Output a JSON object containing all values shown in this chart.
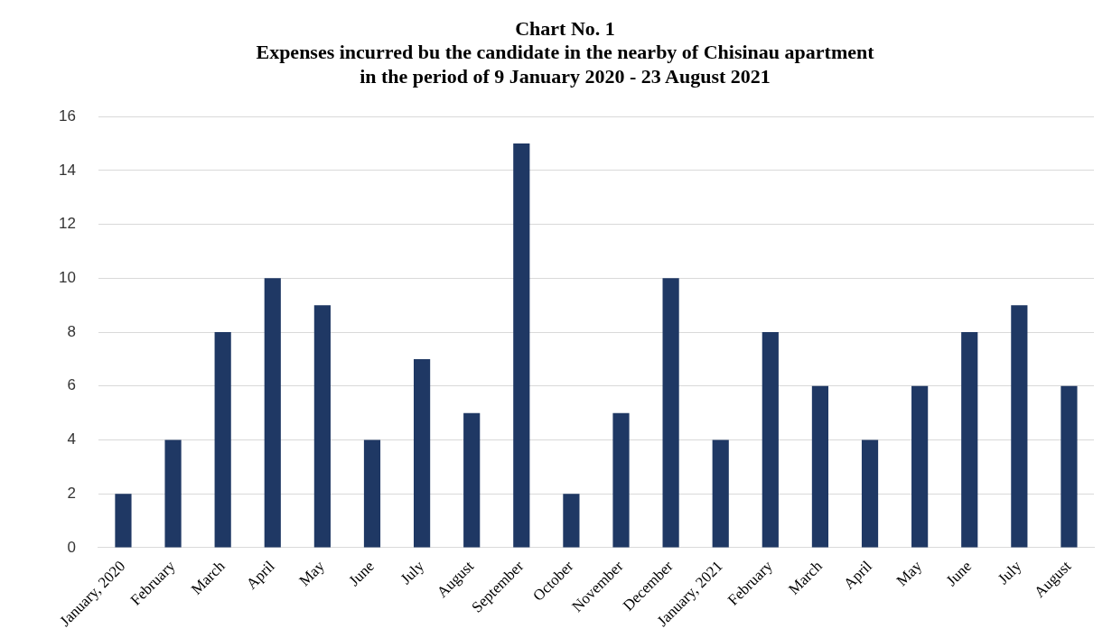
{
  "chart_data": {
    "type": "bar",
    "title": "Chart No. 1\nExpenses incurred bu the candidate in the nearby of Chisinau apartment\nin the period of 9 January 2020 - 23 August 2021",
    "categories": [
      "January, 2020",
      "February",
      "March",
      "April",
      "May",
      "June",
      "July",
      "August",
      "September",
      "October",
      "November",
      "December",
      "January, 2021",
      "February",
      "March",
      "April",
      "May",
      "June",
      "July",
      "August"
    ],
    "values": [
      2,
      4,
      8,
      10,
      9,
      4,
      7,
      5,
      15,
      2,
      5,
      10,
      4,
      8,
      6,
      4,
      6,
      8,
      9,
      6
    ],
    "color": "#1f3864",
    "ylim": [
      0,
      16
    ],
    "yticks": [
      0,
      2,
      4,
      6,
      8,
      10,
      12,
      14,
      16
    ],
    "grid": "y",
    "legend": false
  }
}
